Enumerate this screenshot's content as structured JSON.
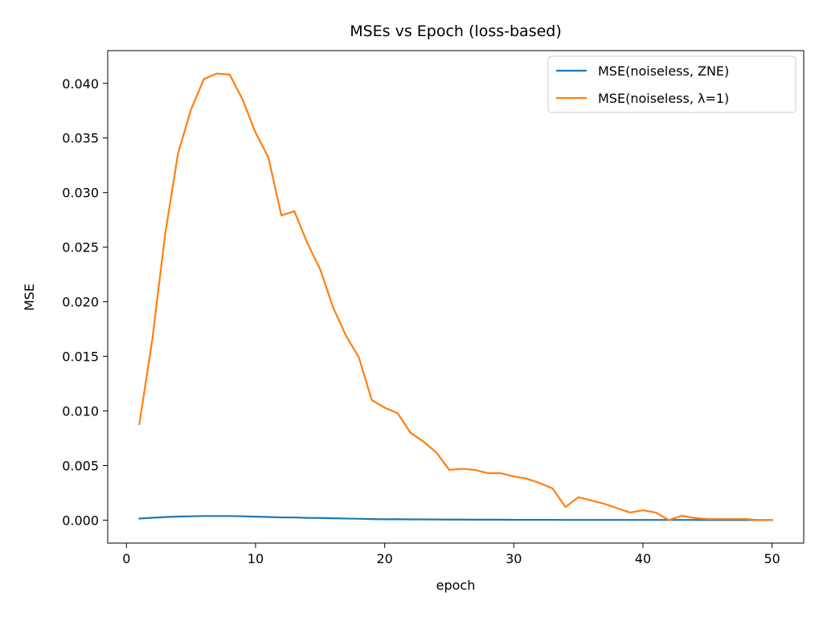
{
  "chart_data": {
    "type": "line",
    "title": "MSEs vs Epoch (loss-based)",
    "xlabel": "epoch",
    "ylabel": "MSE",
    "xlim": [
      -1.45,
      52.45
    ],
    "ylim": [
      -0.0021,
      0.043
    ],
    "xticks": [
      0,
      10,
      20,
      30,
      40,
      50
    ],
    "xtick_labels": [
      "0",
      "10",
      "20",
      "30",
      "40",
      "50"
    ],
    "yticks": [
      0.0,
      0.005,
      0.01,
      0.015,
      0.02,
      0.025,
      0.03,
      0.035,
      0.04
    ],
    "ytick_labels": [
      "0.000",
      "0.005",
      "0.010",
      "0.015",
      "0.020",
      "0.025",
      "0.030",
      "0.035",
      "0.040"
    ],
    "grid": false,
    "legend_position": "top-right",
    "x": [
      1,
      2,
      3,
      4,
      5,
      6,
      7,
      8,
      9,
      10,
      11,
      12,
      13,
      14,
      15,
      16,
      17,
      18,
      19,
      20,
      21,
      22,
      23,
      24,
      25,
      26,
      27,
      28,
      29,
      30,
      31,
      32,
      33,
      34,
      35,
      36,
      37,
      38,
      39,
      40,
      41,
      42,
      43,
      44,
      45,
      46,
      47,
      48,
      49,
      50
    ],
    "series": [
      {
        "name": "MSE(noiseless, ZNE)",
        "color": "#1f77b4",
        "values": [
          0.00015,
          0.00022,
          0.00028,
          0.00033,
          0.00035,
          0.00038,
          0.00038,
          0.00038,
          0.00035,
          0.00032,
          0.00029,
          0.00025,
          0.00025,
          0.00021,
          0.0002,
          0.00017,
          0.00015,
          0.00013,
          0.0001,
          8e-05,
          9e-05,
          7e-05,
          7e-05,
          6e-05,
          5e-05,
          5e-05,
          4e-05,
          4e-05,
          4e-05,
          3e-05,
          3e-05,
          3e-05,
          3e-05,
          2e-05,
          2e-05,
          2e-05,
          2e-05,
          2e-05,
          2e-05,
          2e-05,
          2e-05,
          2e-05,
          2e-05,
          2e-05,
          1e-05,
          1e-05,
          1e-05,
          1e-05,
          1e-05,
          1e-05
        ]
      },
      {
        "name": "MSE(noiseless, λ=1)",
        "color": "#ff7f0e",
        "values": [
          0.0088,
          0.0165,
          0.0262,
          0.0336,
          0.0376,
          0.0404,
          0.0409,
          0.0408,
          0.0385,
          0.0355,
          0.0332,
          0.0279,
          0.0283,
          0.0254,
          0.023,
          0.0195,
          0.0169,
          0.0149,
          0.011,
          0.0103,
          0.0098,
          0.008,
          0.0072,
          0.0062,
          0.0046,
          0.0047,
          0.0046,
          0.0043,
          0.0043,
          0.004,
          0.0038,
          0.0034,
          0.0029,
          0.0012,
          0.0021,
          0.0018,
          0.0015,
          0.0011,
          0.0007,
          0.0009,
          0.0007,
          0.0,
          0.0004,
          0.0002,
          0.0001,
          0.0001,
          0.0001,
          0.0001,
          0.0,
          0.0
        ]
      }
    ]
  }
}
